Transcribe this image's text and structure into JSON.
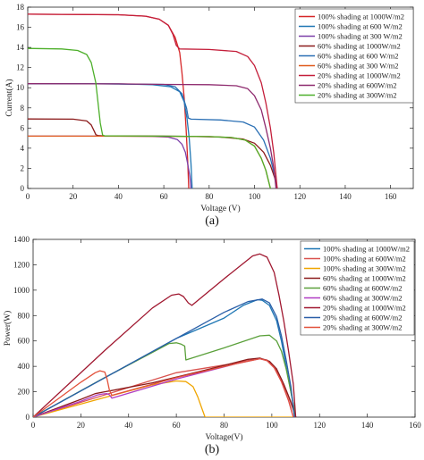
{
  "chart_data": [
    {
      "type": "line",
      "caption": "(a)",
      "xlabel": "Voltage (V)",
      "ylabel": "Current(A)",
      "xlim": [
        0,
        170
      ],
      "ylim": [
        0,
        18
      ],
      "xticks": [
        0,
        20,
        40,
        60,
        80,
        100,
        120,
        140,
        160
      ],
      "yticks": [
        0,
        2,
        4,
        6,
        8,
        10,
        12,
        14,
        16,
        18
      ],
      "legend_position": "top-right",
      "series": [
        {
          "name": "100% shading at 1000W/m2",
          "color": "#d62728",
          "points": [
            [
              0,
              17.3
            ],
            [
              40,
              17.25
            ],
            [
              52,
              17.1
            ],
            [
              58,
              16.8
            ],
            [
              62,
              16.2
            ],
            [
              65,
              15.0
            ],
            [
              67,
              13.5
            ],
            [
              68,
              11.5
            ],
            [
              69,
              9.0
            ],
            [
              69.8,
              6.0
            ],
            [
              70.5,
              3.0
            ],
            [
              71,
              0
            ]
          ]
        },
        {
          "name": "100% shading at 600 W/m2",
          "color": "#1f77b4",
          "points": [
            [
              0,
              10.4
            ],
            [
              40,
              10.38
            ],
            [
              55,
              10.3
            ],
            [
              63,
              10.1
            ],
            [
              67,
              9.6
            ],
            [
              69,
              8.6
            ],
            [
              70.2,
              7.0
            ],
            [
              71.2,
              5.0
            ],
            [
              72,
              2.5
            ],
            [
              72.5,
              0
            ]
          ]
        },
        {
          "name": "100% shading at 300 W/m2",
          "color": "#7b3fa8",
          "points": [
            [
              0,
              5.2
            ],
            [
              40,
              5.2
            ],
            [
              55,
              5.17
            ],
            [
              62,
              5.1
            ],
            [
              66,
              4.85
            ],
            [
              68,
              4.4
            ],
            [
              69.5,
              3.6
            ],
            [
              70.5,
              2.5
            ],
            [
              71.5,
              1.2
            ],
            [
              72,
              0
            ]
          ]
        },
        {
          "name": "60% shading at 1000W/m2",
          "color": "#8b1a1a",
          "points": [
            [
              0,
              6.9
            ],
            [
              20,
              6.88
            ],
            [
              26,
              6.7
            ],
            [
              28,
              6.3
            ],
            [
              29.5,
              5.6
            ],
            [
              30,
              5.35
            ],
            [
              31,
              5.25
            ],
            [
              34,
              5.22
            ],
            [
              60,
              5.2
            ],
            [
              70,
              5.18
            ],
            [
              85,
              5.1
            ],
            [
              95,
              4.9
            ],
            [
              100,
              4.5
            ],
            [
              104,
              3.6
            ],
            [
              107,
              2.3
            ],
            [
              109,
              1.0
            ],
            [
              110,
              0
            ]
          ]
        },
        {
          "name": "60% shading at 600 W/m2",
          "color": "#2a6fb4",
          "points": [
            [
              0,
              10.4
            ],
            [
              30,
              10.38
            ],
            [
              60,
              10.33
            ],
            [
              65,
              10.1
            ],
            [
              68,
              9.4
            ],
            [
              70,
              8.0
            ],
            [
              70.8,
              7.0
            ],
            [
              72,
              6.88
            ],
            [
              85,
              6.8
            ],
            [
              95,
              6.6
            ],
            [
              100,
              6.1
            ],
            [
              104,
              4.8
            ],
            [
              107,
              3.0
            ],
            [
              109,
              1.2
            ],
            [
              110,
              0
            ]
          ]
        },
        {
          "name": "60% shading at 300 W/m2",
          "color": "#e05a1c",
          "points": [
            [
              0,
              5.2
            ],
            [
              20,
              5.2
            ],
            [
              60,
              5.18
            ],
            [
              80,
              5.15
            ],
            [
              90,
              5.05
            ],
            [
              96,
              4.8
            ],
            [
              100,
              4.2
            ],
            [
              103,
              3.0
            ],
            [
              105,
              1.8
            ],
            [
              107,
              0
            ]
          ]
        },
        {
          "name": "20% shading at 1000W/m2",
          "color": "#c41e3a",
          "points": [
            [
              0,
              17.3
            ],
            [
              40,
              17.25
            ],
            [
              52,
              17.1
            ],
            [
              58,
              16.8
            ],
            [
              62,
              16.2
            ],
            [
              64,
              15.3
            ],
            [
              65.5,
              14.2
            ],
            [
              67,
              13.85
            ],
            [
              80,
              13.8
            ],
            [
              92,
              13.6
            ],
            [
              97,
              13.1
            ],
            [
              100,
              12.2
            ],
            [
              103,
              10.5
            ],
            [
              105,
              8.5
            ],
            [
              107,
              6.0
            ],
            [
              108.5,
              3.5
            ],
            [
              110,
              0
            ]
          ]
        },
        {
          "name": "20% shading at 600W/m2",
          "color": "#8e2a6e",
          "points": [
            [
              0,
              10.4
            ],
            [
              40,
              10.38
            ],
            [
              60,
              10.33
            ],
            [
              80,
              10.3
            ],
            [
              92,
              10.2
            ],
            [
              97,
              9.9
            ],
            [
              100,
              9.2
            ],
            [
              103,
              7.8
            ],
            [
              105,
              6.0
            ],
            [
              107,
              4.0
            ],
            [
              108.5,
              2.0
            ],
            [
              109.5,
              0
            ]
          ]
        },
        {
          "name": "20% shading at 300W/m2",
          "color": "#4daf2a",
          "points": [
            [
              0,
              13.9
            ],
            [
              15,
              13.85
            ],
            [
              22,
              13.7
            ],
            [
              26,
              13.3
            ],
            [
              28,
              12.5
            ],
            [
              30,
              10.5
            ],
            [
              31,
              8.5
            ],
            [
              32,
              6.5
            ],
            [
              33,
              5.3
            ],
            [
              34,
              5.22
            ],
            [
              60,
              5.2
            ],
            [
              80,
              5.15
            ],
            [
              90,
              5.05
            ],
            [
              96,
              4.8
            ],
            [
              100,
              4.2
            ],
            [
              103,
              3.0
            ],
            [
              105,
              1.8
            ],
            [
              107,
              0
            ]
          ]
        }
      ]
    },
    {
      "type": "line",
      "caption": "(b)",
      "xlabel": "Voltage(V)",
      "ylabel": "Power(W)",
      "xlim": [
        0,
        160
      ],
      "ylim": [
        0,
        1400
      ],
      "xticks": [
        0,
        20,
        40,
        60,
        80,
        100,
        120,
        140,
        160
      ],
      "yticks": [
        0,
        200,
        400,
        600,
        800,
        1000,
        1200,
        1400
      ],
      "legend_position": "top-right",
      "series": [
        {
          "name": "100% shading at 1000W/m2",
          "color": "#1f77b4",
          "points": [
            [
              0,
              0
            ],
            [
              60,
              620
            ],
            [
              80,
              780
            ],
            [
              88,
              880
            ],
            [
              94,
              925
            ],
            [
              96,
              920
            ],
            [
              99,
              880
            ],
            [
              102,
              760
            ],
            [
              104,
              600
            ],
            [
              106,
              400
            ],
            [
              108,
              200
            ],
            [
              110,
              0
            ]
          ]
        },
        {
          "name": "100% shading at 600W/m2",
          "color": "#d9534f",
          "points": [
            [
              0,
              0
            ],
            [
              60,
              350
            ],
            [
              80,
              410
            ],
            [
              90,
              445
            ],
            [
              95,
              460
            ],
            [
              98,
              450
            ],
            [
              101,
              400
            ],
            [
              104,
              300
            ],
            [
              107,
              160
            ],
            [
              109,
              60
            ],
            [
              110,
              0
            ]
          ]
        },
        {
          "name": "100% shading at 300W/m2",
          "color": "#f0a500",
          "points": [
            [
              0,
              0
            ],
            [
              30,
              155
            ],
            [
              50,
              255
            ],
            [
              60,
              285
            ],
            [
              64,
              280
            ],
            [
              67,
              240
            ],
            [
              69,
              160
            ],
            [
              70.5,
              80
            ],
            [
              72,
              0
            ],
            [
              110,
              0
            ]
          ]
        },
        {
          "name": "60% shading at 1000W/m2",
          "color": "#8b1a1a",
          "points": [
            [
              0,
              0
            ],
            [
              20,
              140
            ],
            [
              26,
              185
            ],
            [
              30,
              200
            ],
            [
              33,
              210
            ],
            [
              50,
              270
            ],
            [
              70,
              360
            ],
            [
              90,
              455
            ],
            [
              95,
              465
            ],
            [
              99,
              440
            ],
            [
              102,
              380
            ],
            [
              105,
              260
            ],
            [
              108,
              120
            ],
            [
              110,
              0
            ]
          ]
        },
        {
          "name": "60% shading at 600W/m2",
          "color": "#5aa03a",
          "points": [
            [
              0,
              0
            ],
            [
              30,
              312
            ],
            [
              50,
              510
            ],
            [
              57,
              580
            ],
            [
              60,
              585
            ],
            [
              62,
              575
            ],
            [
              63.5,
              560
            ],
            [
              64,
              450
            ],
            [
              80,
              545
            ],
            [
              95,
              640
            ],
            [
              99,
              645
            ],
            [
              102,
              600
            ],
            [
              104,
              520
            ],
            [
              106,
              380
            ],
            [
              108,
              200
            ],
            [
              110,
              0
            ]
          ]
        },
        {
          "name": "60% shading at 300W/m2",
          "color": "#b03cc4",
          "points": [
            [
              0,
              0
            ],
            [
              20,
              125
            ],
            [
              27,
              175
            ],
            [
              29,
              182
            ],
            [
              31,
              185
            ],
            [
              32,
              175
            ],
            [
              33,
              150
            ],
            [
              60,
              300
            ],
            [
              85,
              420
            ],
            [
              95,
              460
            ],
            [
              98,
              445
            ],
            [
              101,
              390
            ],
            [
              104,
              280
            ],
            [
              107,
              130
            ],
            [
              109,
              0
            ]
          ]
        },
        {
          "name": "20% shading at 1000W/m2",
          "color": "#a01830",
          "points": [
            [
              0,
              0
            ],
            [
              30,
              525
            ],
            [
              50,
              860
            ],
            [
              58,
              960
            ],
            [
              61,
              970
            ],
            [
              63,
              950
            ],
            [
              65,
              900
            ],
            [
              66.5,
              880
            ],
            [
              80,
              1090
            ],
            [
              92,
              1270
            ],
            [
              95,
              1285
            ],
            [
              98,
              1260
            ],
            [
              101,
              1140
            ],
            [
              103,
              960
            ],
            [
              105,
              760
            ],
            [
              107,
              520
            ],
            [
              109,
              260
            ],
            [
              110,
              0
            ]
          ]
        },
        {
          "name": "20% shading at 600W/m2",
          "color": "#2a5fa8",
          "points": [
            [
              0,
              0
            ],
            [
              30,
              310
            ],
            [
              60,
              620
            ],
            [
              80,
              825
            ],
            [
              90,
              910
            ],
            [
              96,
              930
            ],
            [
              99,
              900
            ],
            [
              102,
              790
            ],
            [
              104,
              640
            ],
            [
              106,
              450
            ],
            [
              108,
              240
            ],
            [
              109.5,
              0
            ]
          ]
        },
        {
          "name": "20% shading at 300W/m2",
          "color": "#e2513a",
          "points": [
            [
              0,
              0
            ],
            [
              20,
              275
            ],
            [
              26,
              350
            ],
            [
              28,
              365
            ],
            [
              30,
              355
            ],
            [
              31,
              300
            ],
            [
              32,
              210
            ],
            [
              33,
              172
            ],
            [
              60,
              312
            ],
            [
              85,
              420
            ],
            [
              95,
              460
            ],
            [
              98,
              445
            ],
            [
              101,
              390
            ],
            [
              104,
              280
            ],
            [
              107,
              130
            ],
            [
              109,
              0
            ]
          ]
        }
      ]
    }
  ]
}
